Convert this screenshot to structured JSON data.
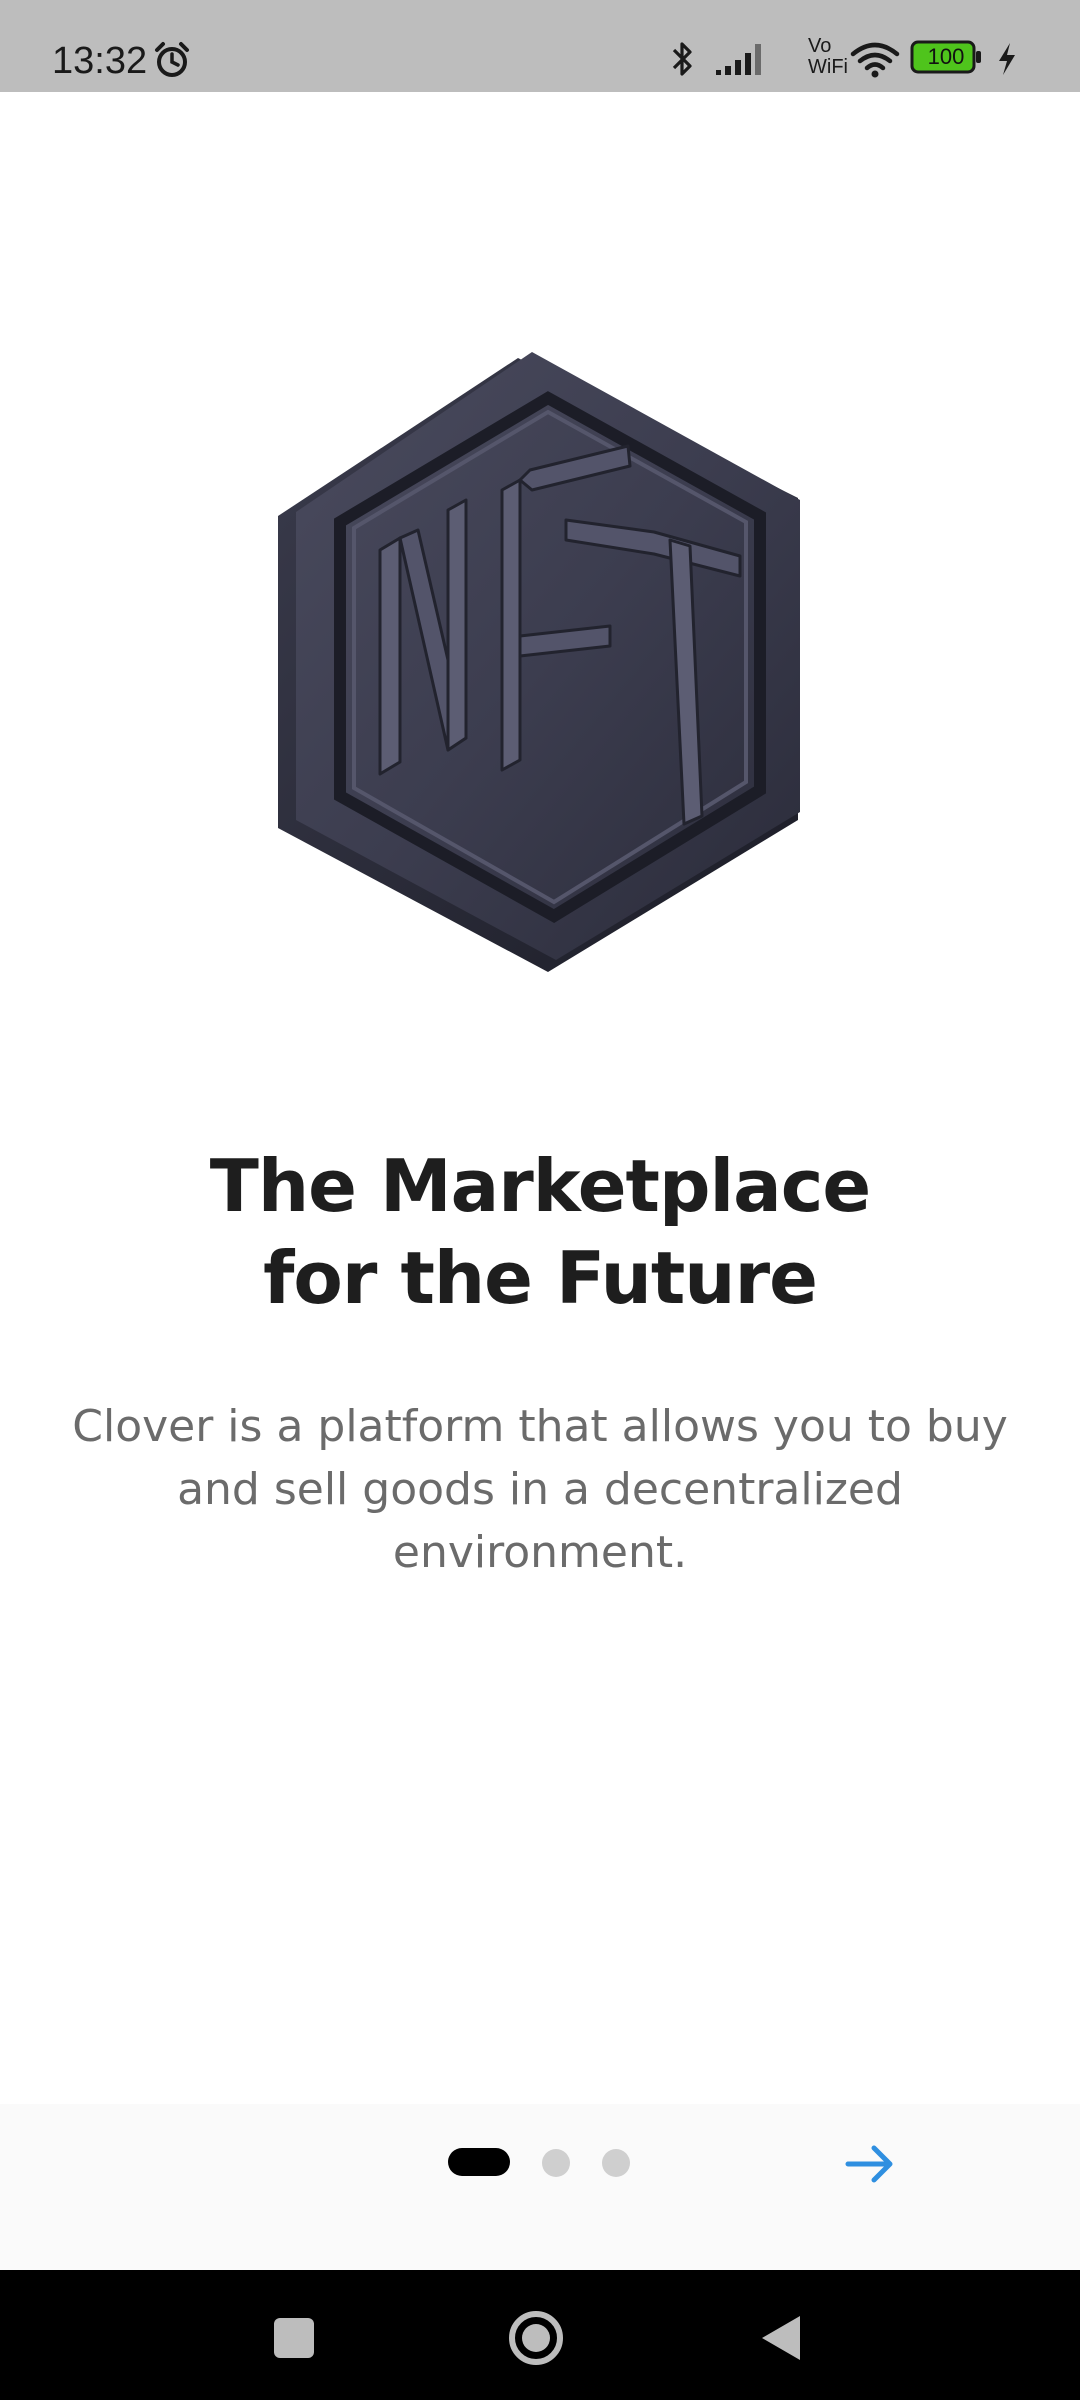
{
  "status_bar": {
    "time": "13:32",
    "network_label_top": "Vo",
    "network_label_bottom": "WiFi",
    "battery_level": "100",
    "icons": [
      "alarm-icon",
      "bluetooth-icon",
      "signal-icon",
      "wifi-icon",
      "battery-icon",
      "charging-icon"
    ]
  },
  "hero": {
    "logo_text": "NFT",
    "icon": "nft-hexagon-logo"
  },
  "onboarding": {
    "title_line1": "The Marketplace",
    "title_line2": "for the Future",
    "description_line1": "Clover is a platform that allows you to buy",
    "description_line2": "and sell goods in a decentralized",
    "description_line3": "environment.",
    "page_indicator": {
      "current": 1,
      "total": 3
    }
  },
  "controls": {
    "next_icon": "arrow-right-icon",
    "accent_color": "#2f8fe0"
  },
  "nav_bar": {
    "icons": [
      "recents-icon",
      "home-icon",
      "back-icon"
    ]
  }
}
